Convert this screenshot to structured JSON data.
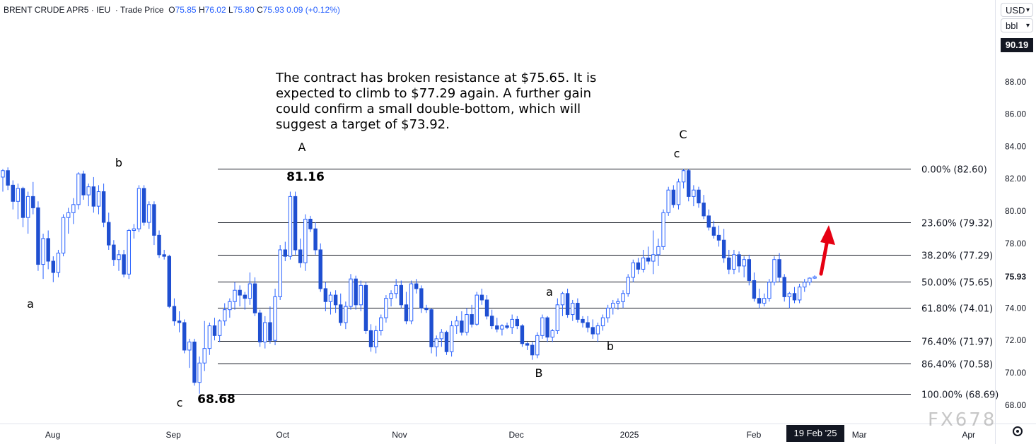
{
  "header": {
    "symbol": "BRENT CRUDE APR5",
    "sep": "·",
    "exchange": "IEU",
    "sep2": "·",
    "price_type": "Trade Price",
    "o_label": "O",
    "o": "75.85",
    "h_label": "H",
    "h": "76.02",
    "l_label": "L",
    "l": "75.80",
    "c_label": "C",
    "c": "75.93",
    "change": "0.09 (+0.12%)"
  },
  "price_axis": {
    "currency": "USD",
    "unit": "bbl",
    "top_price_label": "90.19",
    "current_price_label": "75.93",
    "ticks": [
      "88.00",
      "86.00",
      "84.00",
      "82.00",
      "80.00",
      "78.00",
      "74.00",
      "72.00",
      "70.00",
      "68.00"
    ]
  },
  "time_axis": {
    "labels": [
      "Aug",
      "Sep",
      "Oct",
      "Nov",
      "Dec",
      "2025",
      "Feb",
      "Mar",
      "Apr"
    ],
    "current_date": "19 Feb '25"
  },
  "annotation": "The contract has broken resistance at $75.65. It is expected to climb to $77.29 again. A further gain could confirm a small double-bottom, which will suggest a target of $73.92.",
  "watermark": "FX678",
  "colors": {
    "up": "#2962ff",
    "down": "#1f4fd1",
    "fib_line": "#131722",
    "arrow": "#e60012"
  },
  "icons": {
    "settings": "gear-icon",
    "dropdown": "chevron-down-icon",
    "target_arrow": "arrow-up-icon"
  },
  "chart_data": {
    "type": "candlestick",
    "instrument": "BRENT CRUDE APR5",
    "y_range": [
      67.5,
      91
    ],
    "x_range": [
      "2024-07-18",
      "2025-04-08"
    ],
    "x_ticks": [
      {
        "label": "Aug",
        "date": "2024-08-01"
      },
      {
        "label": "Sep",
        "date": "2024-09-02"
      },
      {
        "label": "Oct",
        "date": "2024-10-01"
      },
      {
        "label": "Nov",
        "date": "2024-11-01"
      },
      {
        "label": "Dec",
        "date": "2024-12-02"
      },
      {
        "label": "2025",
        "date": "2025-01-01"
      },
      {
        "label": "Feb",
        "date": "2025-02-03"
      },
      {
        "label": "Mar",
        "date": "2025-03-03"
      },
      {
        "label": "Apr",
        "date": "2025-04-01"
      }
    ],
    "fib_levels": [
      {
        "label": "0.00% (82.60)",
        "price": 82.6
      },
      {
        "label": "23.60% (79.32)",
        "price": 79.32
      },
      {
        "label": "38.20% (77.29)",
        "price": 77.29
      },
      {
        "label": "50.00% (75.65)",
        "price": 75.65
      },
      {
        "label": "61.80% (74.01)",
        "price": 74.01
      },
      {
        "label": "76.40% (71.97)",
        "price": 71.97
      },
      {
        "label": "86.40% (70.58)",
        "price": 70.58
      },
      {
        "label": "100.00% (68.69)",
        "price": 68.69
      }
    ],
    "wave_labels": [
      {
        "text": "a",
        "date": "2024-07-22",
        "price": 73.9
      },
      {
        "text": "b",
        "date": "2024-08-13",
        "price": 82.7
      },
      {
        "text": "c",
        "date": "2024-09-10",
        "price": 67.9
      },
      {
        "text": "A",
        "date": "2024-10-10",
        "price": 84.0
      },
      {
        "text": "B",
        "date": "2024-12-11",
        "price": 69.8
      },
      {
        "text": "a",
        "date": "2024-12-17",
        "price": 75.0
      },
      {
        "text": "b",
        "date": "2024-12-27",
        "price": 71.6
      },
      {
        "text": "C",
        "date": "2025-01-16",
        "price": 85.2
      },
      {
        "text": "c",
        "date": "2025-01-16",
        "price": 83.9
      }
    ],
    "price_labels": [
      {
        "text": "81.16",
        "date": "2024-10-12",
        "price": 81.9
      },
      {
        "text": "68.68",
        "date": "2024-09-18",
        "price": 67.9
      }
    ],
    "candles": [
      [
        82.1,
        82.6,
        81.2,
        82.5
      ],
      [
        82.5,
        82.7,
        81.3,
        81.6
      ],
      [
        81.6,
        81.9,
        80.1,
        80.6
      ],
      [
        80.6,
        81.7,
        79.5,
        81.4
      ],
      [
        81.4,
        81.5,
        79.0,
        79.6
      ],
      [
        79.6,
        81.2,
        78.6,
        80.9
      ],
      [
        80.9,
        81.8,
        79.8,
        80.2
      ],
      [
        80.2,
        80.6,
        76.3,
        76.7
      ],
      [
        76.7,
        78.6,
        75.8,
        78.3
      ],
      [
        78.3,
        78.8,
        76.4,
        76.9
      ],
      [
        76.9,
        77.2,
        75.6,
        76.2
      ],
      [
        76.2,
        77.6,
        75.9,
        77.4
      ],
      [
        77.4,
        79.8,
        77.2,
        79.6
      ],
      [
        79.6,
        80.2,
        78.6,
        79.9
      ],
      [
        79.9,
        80.8,
        79.2,
        80.4
      ],
      [
        80.4,
        82.4,
        80.1,
        82.3
      ],
      [
        82.3,
        82.5,
        80.7,
        81.0
      ],
      [
        81.0,
        81.7,
        80.3,
        81.5
      ],
      [
        81.5,
        82.1,
        79.9,
        80.3
      ],
      [
        80.3,
        81.6,
        79.8,
        81.2
      ],
      [
        81.2,
        81.7,
        79.0,
        79.3
      ],
      [
        79.3,
        79.9,
        77.6,
        77.9
      ],
      [
        77.9,
        78.2,
        76.6,
        77.0
      ],
      [
        77.0,
        77.6,
        76.3,
        77.3
      ],
      [
        77.3,
        77.6,
        75.9,
        76.1
      ],
      [
        76.1,
        78.9,
        75.8,
        78.8
      ],
      [
        78.8,
        79.2,
        78.3,
        78.9
      ],
      [
        78.9,
        81.6,
        78.7,
        81.4
      ],
      [
        81.4,
        81.6,
        79.1,
        79.3
      ],
      [
        79.3,
        80.6,
        78.9,
        80.4
      ],
      [
        80.4,
        80.6,
        77.9,
        78.5
      ],
      [
        78.5,
        78.8,
        77.1,
        77.3
      ],
      [
        77.3,
        77.6,
        77.0,
        77.2
      ],
      [
        77.2,
        77.3,
        74.0,
        74.1
      ],
      [
        74.1,
        74.6,
        72.9,
        73.2
      ],
      [
        73.2,
        73.8,
        72.5,
        73.1
      ],
      [
        73.1,
        73.3,
        71.2,
        71.4
      ],
      [
        71.4,
        72.1,
        70.3,
        71.9
      ],
      [
        71.9,
        72.1,
        69.2,
        69.4
      ],
      [
        69.4,
        71.0,
        68.7,
        70.6
      ],
      [
        70.6,
        73.2,
        70.1,
        71.5
      ],
      [
        71.5,
        73.1,
        71.1,
        72.9
      ],
      [
        72.9,
        73.4,
        72.0,
        72.3
      ],
      [
        72.3,
        73.3,
        71.9,
        73.2
      ],
      [
        73.2,
        74.3,
        72.9,
        73.9
      ],
      [
        73.9,
        74.6,
        73.4,
        74.4
      ],
      [
        74.4,
        75.6,
        73.9,
        75.1
      ],
      [
        75.1,
        75.4,
        74.1,
        74.8
      ],
      [
        74.8,
        75.0,
        73.9,
        74.6
      ],
      [
        74.6,
        76.2,
        74.2,
        75.5
      ],
      [
        75.5,
        75.9,
        73.5,
        73.7
      ],
      [
        73.7,
        73.9,
        71.6,
        71.9
      ],
      [
        71.9,
        73.5,
        71.5,
        73.1
      ],
      [
        73.1,
        74.1,
        71.8,
        72.0
      ],
      [
        72.0,
        75.2,
        71.7,
        74.7
      ],
      [
        74.7,
        77.9,
        74.5,
        77.6
      ],
      [
        77.6,
        78.1,
        76.9,
        77.2
      ],
      [
        77.2,
        81.2,
        77.0,
        80.9
      ],
      [
        80.9,
        81.2,
        77.3,
        77.6
      ],
      [
        77.6,
        78.3,
        76.5,
        76.8
      ],
      [
        76.8,
        79.8,
        76.3,
        79.5
      ],
      [
        79.5,
        79.7,
        78.7,
        78.9
      ],
      [
        78.9,
        79.3,
        77.3,
        77.6
      ],
      [
        77.6,
        78.0,
        75.0,
        75.2
      ],
      [
        75.2,
        75.6,
        73.8,
        74.4
      ],
      [
        74.4,
        75.0,
        73.6,
        74.8
      ],
      [
        74.8,
        75.1,
        73.7,
        74.2
      ],
      [
        74.2,
        74.9,
        72.9,
        73.1
      ],
      [
        73.1,
        74.4,
        72.7,
        74.1
      ],
      [
        74.1,
        76.1,
        73.9,
        75.8
      ],
      [
        75.8,
        76.0,
        73.9,
        74.2
      ],
      [
        74.2,
        75.7,
        73.8,
        75.4
      ],
      [
        75.4,
        75.6,
        72.4,
        72.6
      ],
      [
        72.6,
        73.0,
        71.3,
        71.6
      ],
      [
        71.6,
        72.9,
        71.2,
        72.6
      ],
      [
        72.6,
        73.6,
        72.3,
        73.4
      ],
      [
        73.4,
        74.8,
        73.1,
        74.6
      ],
      [
        74.6,
        75.1,
        74.1,
        74.9
      ],
      [
        74.9,
        75.8,
        74.6,
        75.4
      ],
      [
        75.4,
        75.7,
        74.0,
        74.2
      ],
      [
        74.2,
        75.0,
        73.0,
        73.2
      ],
      [
        73.2,
        75.7,
        73.0,
        75.5
      ],
      [
        75.5,
        75.8,
        74.9,
        75.2
      ],
      [
        75.2,
        75.4,
        73.7,
        74.0
      ],
      [
        74.0,
        74.2,
        73.7,
        73.9
      ],
      [
        73.9,
        74.0,
        71.2,
        71.6
      ],
      [
        71.6,
        72.3,
        71.0,
        72.1
      ],
      [
        72.1,
        72.7,
        71.6,
        72.5
      ],
      [
        72.5,
        72.6,
        71.1,
        71.3
      ],
      [
        71.3,
        73.2,
        71.0,
        72.9
      ],
      [
        72.9,
        73.5,
        72.4,
        73.2
      ],
      [
        73.2,
        73.8,
        72.3,
        72.5
      ],
      [
        72.5,
        74.0,
        72.3,
        73.6
      ],
      [
        73.6,
        74.2,
        72.8,
        73.0
      ],
      [
        73.0,
        75.0,
        72.9,
        74.8
      ],
      [
        74.8,
        75.2,
        74.2,
        74.5
      ],
      [
        74.5,
        74.8,
        73.3,
        73.5
      ],
      [
        73.5,
        73.9,
        72.7,
        72.9
      ],
      [
        72.9,
        73.4,
        72.5,
        72.7
      ],
      [
        72.7,
        73.0,
        72.3,
        72.9
      ],
      [
        72.9,
        73.1,
        72.7,
        72.8
      ],
      [
        72.8,
        73.6,
        72.4,
        73.3
      ],
      [
        73.3,
        73.5,
        72.7,
        72.9
      ],
      [
        72.9,
        73.0,
        71.6,
        71.8
      ],
      [
        71.8,
        71.9,
        71.4,
        71.7
      ],
      [
        71.7,
        71.9,
        70.8,
        71.1
      ],
      [
        71.1,
        72.5,
        70.9,
        72.3
      ],
      [
        72.3,
        73.6,
        72.1,
        73.4
      ],
      [
        73.4,
        73.5,
        71.9,
        72.2
      ],
      [
        72.2,
        72.7,
        71.9,
        72.6
      ],
      [
        72.6,
        74.6,
        72.4,
        74.2
      ],
      [
        74.2,
        75.0,
        73.5,
        74.9
      ],
      [
        74.9,
        75.2,
        73.4,
        73.6
      ],
      [
        73.6,
        74.5,
        73.2,
        74.3
      ],
      [
        74.3,
        74.6,
        73.1,
        73.3
      ],
      [
        73.3,
        73.5,
        72.8,
        73.1
      ],
      [
        73.1,
        73.5,
        72.5,
        72.8
      ],
      [
        72.8,
        73.3,
        72.1,
        72.4
      ],
      [
        72.4,
        73.1,
        71.9,
        72.9
      ],
      [
        72.9,
        73.6,
        72.6,
        73.4
      ],
      [
        73.4,
        74.2,
        73.1,
        74.0
      ],
      [
        74.0,
        74.5,
        73.6,
        74.3
      ],
      [
        74.3,
        74.6,
        73.9,
        74.4
      ],
      [
        74.4,
        75.1,
        74.0,
        74.9
      ],
      [
        74.9,
        76.1,
        74.7,
        75.9
      ],
      [
        75.9,
        77.0,
        75.6,
        76.8
      ],
      [
        76.8,
        77.1,
        76.1,
        76.4
      ],
      [
        76.4,
        77.6,
        76.2,
        77.1
      ],
      [
        77.1,
        77.8,
        76.7,
        76.9
      ],
      [
        76.9,
        78.8,
        76.1,
        77.3
      ],
      [
        77.3,
        78.3,
        76.6,
        77.8
      ],
      [
        77.8,
        80.1,
        77.6,
        79.9
      ],
      [
        79.9,
        81.5,
        79.7,
        81.3
      ],
      [
        81.3,
        81.6,
        80.2,
        80.4
      ],
      [
        80.4,
        82.0,
        80.1,
        81.8
      ],
      [
        81.8,
        82.6,
        81.4,
        82.5
      ],
      [
        82.5,
        82.6,
        80.6,
        80.9
      ],
      [
        80.9,
        81.6,
        80.3,
        81.3
      ],
      [
        81.3,
        81.5,
        80.2,
        80.5
      ],
      [
        80.5,
        81.0,
        79.5,
        79.7
      ],
      [
        79.7,
        80.1,
        78.8,
        79.0
      ],
      [
        79.0,
        79.4,
        78.3,
        78.5
      ],
      [
        78.5,
        79.1,
        77.8,
        78.2
      ],
      [
        78.2,
        78.9,
        76.8,
        77.1
      ],
      [
        77.1,
        77.6,
        76.1,
        76.4
      ],
      [
        76.4,
        77.6,
        76.1,
        77.3
      ],
      [
        77.3,
        77.5,
        76.2,
        76.6
      ],
      [
        76.6,
        77.2,
        75.9,
        77.0
      ],
      [
        77.0,
        77.3,
        75.4,
        75.7
      ],
      [
        75.7,
        76.2,
        74.4,
        74.6
      ],
      [
        74.6,
        75.2,
        74.0,
        74.3
      ],
      [
        74.3,
        74.9,
        74.1,
        74.6
      ],
      [
        74.6,
        75.8,
        74.4,
        75.6
      ],
      [
        75.6,
        77.2,
        75.4,
        77.0
      ],
      [
        77.0,
        77.4,
        75.6,
        75.9
      ],
      [
        75.9,
        76.1,
        74.4,
        74.7
      ],
      [
        74.7,
        75.0,
        74.0,
        74.9
      ],
      [
        74.9,
        75.3,
        74.3,
        74.5
      ],
      [
        74.5,
        75.5,
        74.3,
        75.3
      ],
      [
        75.3,
        75.8,
        75.0,
        75.6
      ],
      [
        75.6,
        75.9,
        75.4,
        75.85
      ],
      [
        75.85,
        76.02,
        75.8,
        75.93
      ]
    ]
  }
}
